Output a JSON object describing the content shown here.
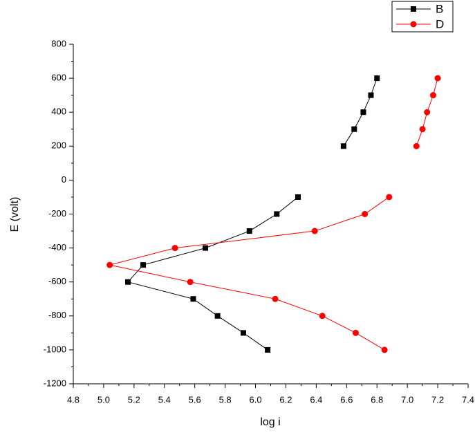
{
  "chart_data": {
    "type": "line",
    "x_label": "log i",
    "y_label": "E (volt)",
    "xlim": [
      4.8,
      7.4
    ],
    "ylim": [
      -1200,
      800
    ],
    "xticks": [
      4.8,
      {
        "value": 5,
        "label": "5.0"
      },
      5.2,
      5.4,
      5.6,
      5.8,
      {
        "value": 6,
        "label": "6.0"
      },
      6.2,
      6.4,
      6.6,
      6.8,
      {
        "value": 7,
        "label": "7.0"
      },
      7.2,
      7.4
    ],
    "yticks": [
      -1200,
      -1000,
      -800,
      -600,
      -400,
      -200,
      0,
      200,
      400,
      600,
      800
    ],
    "legend": "top-right",
    "series": [
      {
        "name": "B",
        "color": "#000000",
        "marker": "square",
        "x": [
          6.08,
          5.92,
          5.75,
          5.59,
          5.16,
          5.26,
          5.67,
          5.96,
          6.14,
          6.28,
          null,
          6.58,
          6.65,
          6.71,
          6.76,
          6.8
        ],
        "values": [
          -1000,
          -900,
          -800,
          -700,
          -600,
          -500,
          -400,
          -300,
          -200,
          -100,
          null,
          200,
          300,
          400,
          500,
          600
        ]
      },
      {
        "name": "D",
        "color": "#ff0000",
        "marker": "circle",
        "x": [
          6.85,
          6.66,
          6.44,
          6.13,
          5.57,
          5.04,
          5.47,
          6.39,
          6.72,
          6.88,
          null,
          7.06,
          7.1,
          7.13,
          7.17,
          7.2
        ],
        "values": [
          -1000,
          -900,
          -800,
          -700,
          -600,
          -500,
          -400,
          -300,
          -200,
          -100,
          null,
          200,
          300,
          400,
          500,
          600
        ]
      }
    ]
  }
}
